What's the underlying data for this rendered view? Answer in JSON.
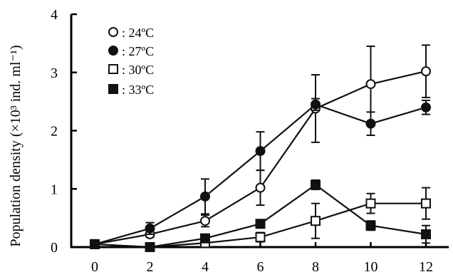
{
  "chart_data": {
    "type": "line",
    "xlabel": "",
    "ylabel": "Population density (×10³ ind. ml⁻¹)",
    "ylim": [
      0,
      4
    ],
    "xlim": [
      0,
      12
    ],
    "xticks": [
      0,
      2,
      4,
      6,
      8,
      10,
      12
    ],
    "yticks": [
      0,
      1,
      2,
      3,
      4
    ],
    "legend_position": "top-left",
    "grid": false,
    "x": [
      0,
      2,
      4,
      6,
      8,
      10,
      12
    ],
    "series": [
      {
        "name": ": 24ºC",
        "marker": "circle-open",
        "values": [
          0.05,
          0.22,
          0.45,
          1.02,
          2.38,
          2.8,
          3.02
        ],
        "errors": [
          0.03,
          0.05,
          0.1,
          0.3,
          0.58,
          0.65,
          0.45
        ]
      },
      {
        "name": ": 27ºC",
        "marker": "circle-filled",
        "values": [
          0.05,
          0.32,
          0.87,
          1.65,
          2.45,
          2.12,
          2.4
        ],
        "errors": [
          0.03,
          0.1,
          0.3,
          0.33,
          0.1,
          0.2,
          0.12
        ]
      },
      {
        "name": ": 30ºC",
        "marker": "square-open",
        "values": [
          0.05,
          0.0,
          0.07,
          0.17,
          0.45,
          0.75,
          0.75
        ],
        "errors": [
          0.03,
          0.02,
          0.05,
          0.08,
          0.3,
          0.17,
          0.27
        ]
      },
      {
        "name": ": 33ºC",
        "marker": "square-filled",
        "values": [
          0.05,
          0.0,
          0.15,
          0.4,
          1.07,
          0.37,
          0.22
        ],
        "errors": [
          0.03,
          0.02,
          0.05,
          0.05,
          0.08,
          0.08,
          0.15
        ]
      }
    ]
  }
}
